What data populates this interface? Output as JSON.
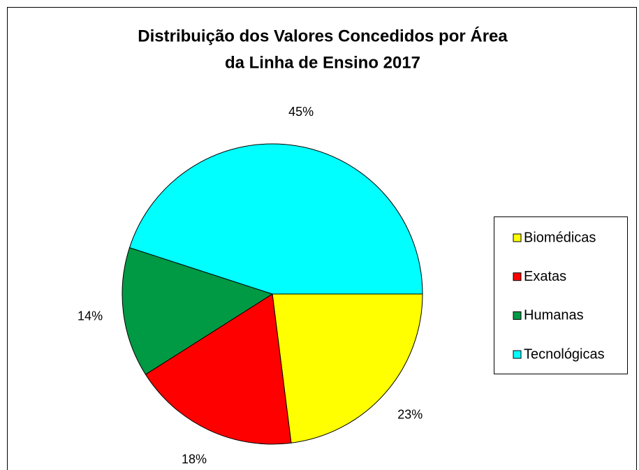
{
  "chart_data": {
    "type": "pie",
    "title": [
      "Distribuição dos Valores Concedidos por Área",
      "da Linha de Ensino 2017"
    ],
    "categories": [
      "Biomédicas",
      "Exatas",
      "Humanas",
      "Tecnológicas"
    ],
    "values": [
      23,
      18,
      14,
      45
    ],
    "value_labels": [
      "23%",
      "18%",
      "14%",
      "45%"
    ],
    "colors": [
      "#ffff00",
      "#ff0000",
      "#009944",
      "#00ffff"
    ],
    "legend": "right"
  }
}
